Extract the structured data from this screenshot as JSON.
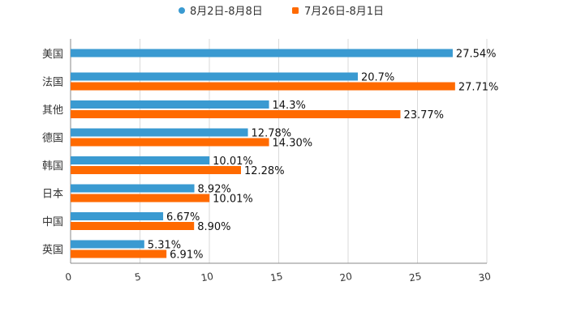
{
  "chart_data": {
    "type": "bar",
    "orientation": "horizontal",
    "title": "",
    "xlabel": "",
    "ylabel": "",
    "xlim": [
      0,
      30
    ],
    "x_ticks": [
      0,
      5,
      10,
      15,
      20,
      25,
      30
    ],
    "grid": true,
    "legend_position": "top-center",
    "categories": [
      "美国",
      "法国",
      "其他",
      "德国",
      "韩国",
      "日本",
      "中国",
      "英国"
    ],
    "series": [
      {
        "name": "8月2日-8月8日",
        "color": "#3a9ad1",
        "marker": "circle",
        "values": [
          27.54,
          20.7,
          14.3,
          12.78,
          10.01,
          8.92,
          6.67,
          5.31
        ],
        "labels": [
          "27.54%",
          "20.7%",
          "14.3%",
          "12.78%",
          "10.01%",
          "8.92%",
          "6.67%",
          "5.31%"
        ]
      },
      {
        "name": "7月26日-8月1日",
        "color": "#ff6a00",
        "marker": "square",
        "values": [
          null,
          27.71,
          23.77,
          14.3,
          12.28,
          10.01,
          8.9,
          6.91
        ],
        "labels": [
          null,
          "27.71%",
          "23.77%",
          "14.30%",
          "12.28%",
          "10.01%",
          "8.90%",
          "6.91%"
        ]
      }
    ]
  }
}
